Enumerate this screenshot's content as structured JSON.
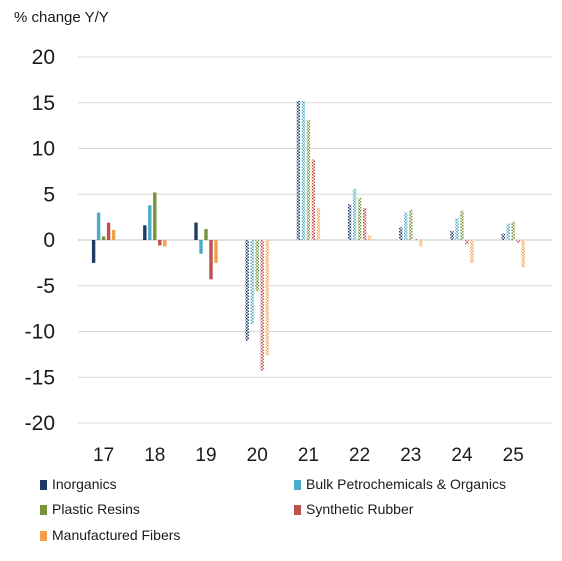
{
  "chart_data": {
    "type": "bar",
    "title": "",
    "ylabel": "% change Y/Y",
    "xlabel": "",
    "categories": [
      "17",
      "18",
      "19",
      "20",
      "21",
      "22",
      "23",
      "24",
      "25"
    ],
    "ylim": [
      -20,
      20
    ],
    "yticks": [
      20,
      15,
      10,
      5,
      0,
      -5,
      -10,
      -15,
      -20
    ],
    "grid": "horizontal",
    "legend_position": "bottom",
    "series": [
      {
        "name": "Inorganics",
        "color": "#1f3864",
        "style": "solid_then_hatched",
        "values": [
          -2.5,
          1.6,
          1.9,
          -11.0,
          15.2,
          3.9,
          1.4,
          1.0,
          0.7
        ]
      },
      {
        "name": "Bulk Petrochemicals & Organics",
        "color": "#4bacc6",
        "style": "solid_then_hatched",
        "values": [
          3.0,
          3.8,
          -1.5,
          -9.2,
          15.2,
          5.6,
          3.0,
          2.4,
          1.8
        ]
      },
      {
        "name": "Plastic Resins",
        "color": "#77933c",
        "style": "solid_then_hatched",
        "values": [
          0.4,
          5.2,
          1.2,
          -5.6,
          13.1,
          4.6,
          3.3,
          3.2,
          2.0
        ]
      },
      {
        "name": "Synthetic Rubber",
        "color": "#c0504d",
        "style": "solid_then_hatched",
        "values": [
          1.9,
          -0.6,
          -4.3,
          -14.3,
          8.8,
          3.5,
          0.1,
          -0.5,
          -0.3
        ]
      },
      {
        "name": "Manufactured Fibers",
        "color": "#f0a04b",
        "style": "solid_then_hatched",
        "values": [
          1.1,
          -0.7,
          -2.5,
          -12.6,
          3.5,
          0.5,
          -0.7,
          -2.5,
          -3.0
        ]
      }
    ],
    "hatched_from_category": "20"
  }
}
